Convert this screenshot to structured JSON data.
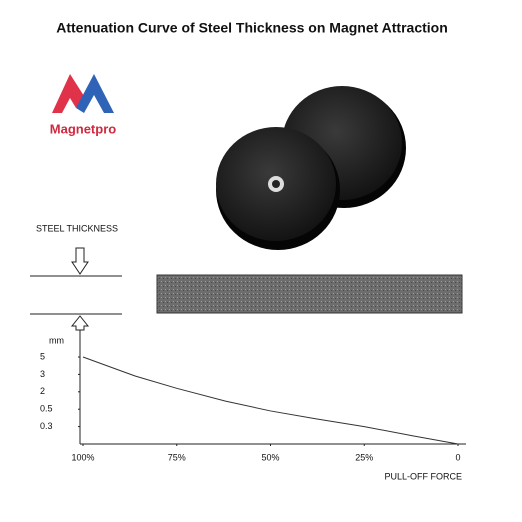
{
  "chart_data": {
    "type": "line",
    "title": "Attenuation Curve of Steel Thickness on Magnet Attraction",
    "brand": "Magnetpro",
    "diagram_label": "STEEL THICKNESS",
    "y_label": "mm",
    "x_label": "PULL-OFF FORCE",
    "x": [
      100,
      86,
      75,
      62,
      50,
      38,
      25,
      12,
      0
    ],
    "series": [
      {
        "color": "#333333",
        "values": [
          5,
          2.9,
          2.2,
          1.2,
          0.48,
          0.39,
          0.3,
          0.14,
          0
        ]
      }
    ],
    "xlim": [
      100,
      0
    ],
    "xticks": [
      {
        "value": 100,
        "label": "100%"
      },
      {
        "value": 75,
        "label": "75%"
      },
      {
        "value": 50,
        "label": "50%"
      },
      {
        "value": 25,
        "label": "25%"
      },
      0
    ],
    "ylim": [
      0,
      5
    ],
    "yticks": [
      0.3,
      0.5,
      2,
      3,
      5
    ]
  }
}
